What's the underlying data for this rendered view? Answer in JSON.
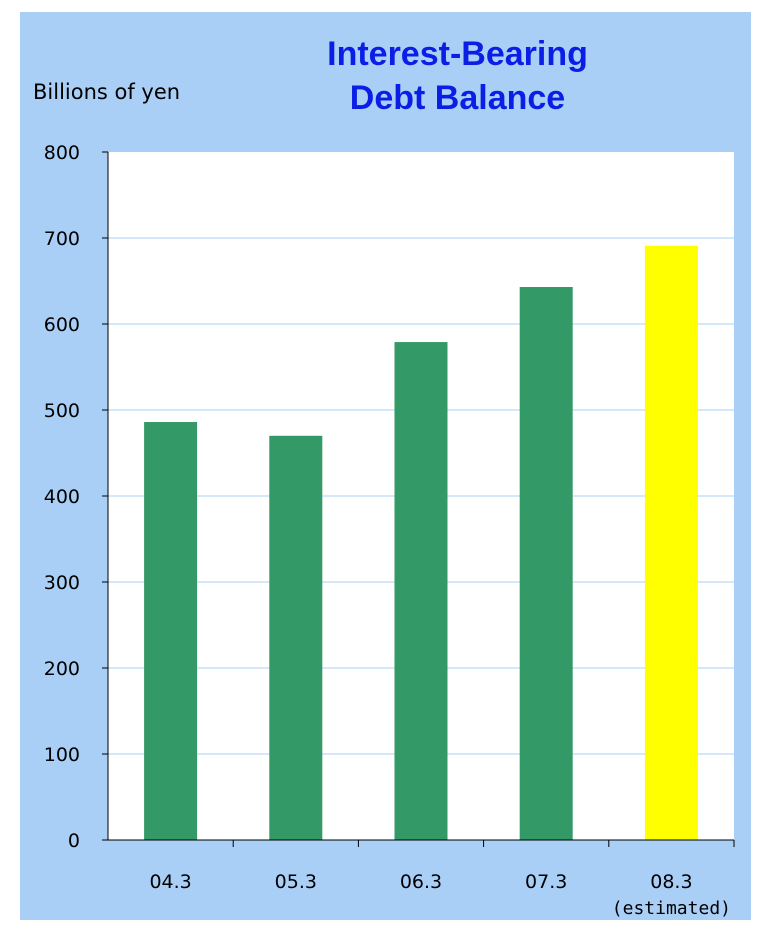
{
  "chart_data": {
    "type": "bar",
    "title_lines": [
      "Interest-Bearing",
      "Debt Balance"
    ],
    "ylabel": "Billions of yen",
    "xlabel": "",
    "categories": [
      "04.3",
      "05.3",
      "06.3",
      "07.3",
      "08.3"
    ],
    "category_notes": [
      "",
      "",
      "",
      "",
      "(estimated)"
    ],
    "values": [
      486,
      470,
      579,
      643,
      691
    ],
    "bar_colors": [
      "#339966",
      "#339966",
      "#339966",
      "#339966",
      "#ffff00"
    ],
    "ylim": [
      0,
      800
    ],
    "yticks": [
      0,
      100,
      200,
      300,
      400,
      500,
      600,
      700,
      800
    ],
    "grid": true,
    "legend": "none"
  },
  "colors": {
    "background": "#a9cff7",
    "plot_background": "#ffffff",
    "title": "#0a1ee6",
    "gridline": "#a9cff7"
  }
}
